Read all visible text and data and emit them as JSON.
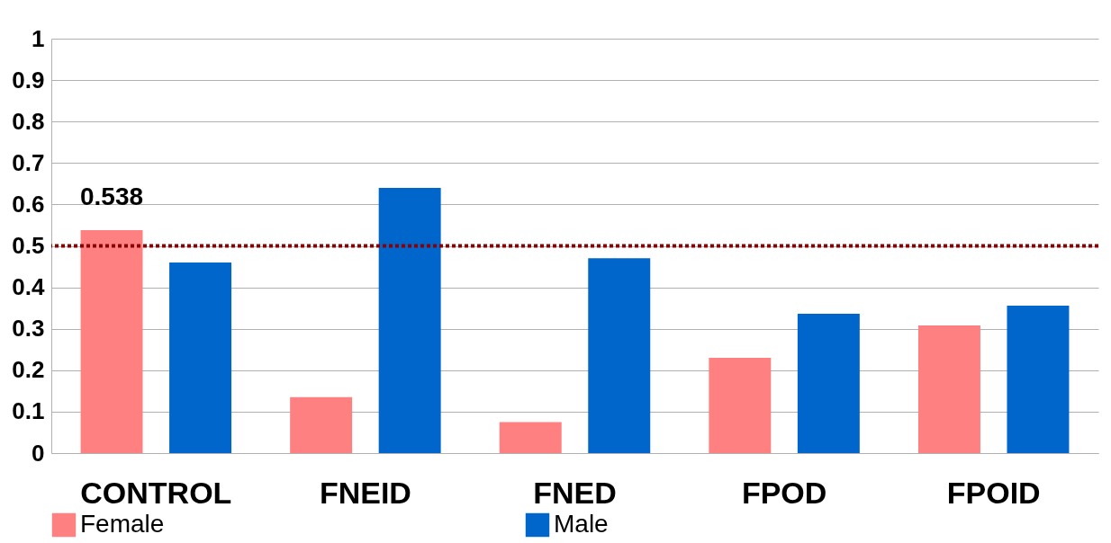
{
  "chart_data": {
    "type": "bar",
    "categories": [
      "CONTROL",
      "FNEID",
      "FNED",
      "FPOD",
      "FPOID"
    ],
    "series": [
      {
        "name": "Female",
        "color": "#ff8080",
        "values": [
          0.538,
          0.135,
          0.075,
          0.23,
          0.308
        ],
        "value_labels": [
          "0.538",
          null,
          null,
          null,
          null
        ]
      },
      {
        "name": "Male",
        "color": "#0066cc",
        "values": [
          0.46,
          0.64,
          0.47,
          0.336,
          0.356
        ]
      }
    ],
    "ylim": [
      0,
      1
    ],
    "yticks": [
      0,
      0.1,
      0.2,
      0.3,
      0.4,
      0.5,
      0.6,
      0.7,
      0.8,
      0.9,
      1
    ],
    "grid": "y",
    "legend": "bottom",
    "ref_lines": [
      {
        "axis": "y",
        "value": 0.5,
        "color": "#8b0000",
        "line_style": "dotted"
      }
    ]
  }
}
